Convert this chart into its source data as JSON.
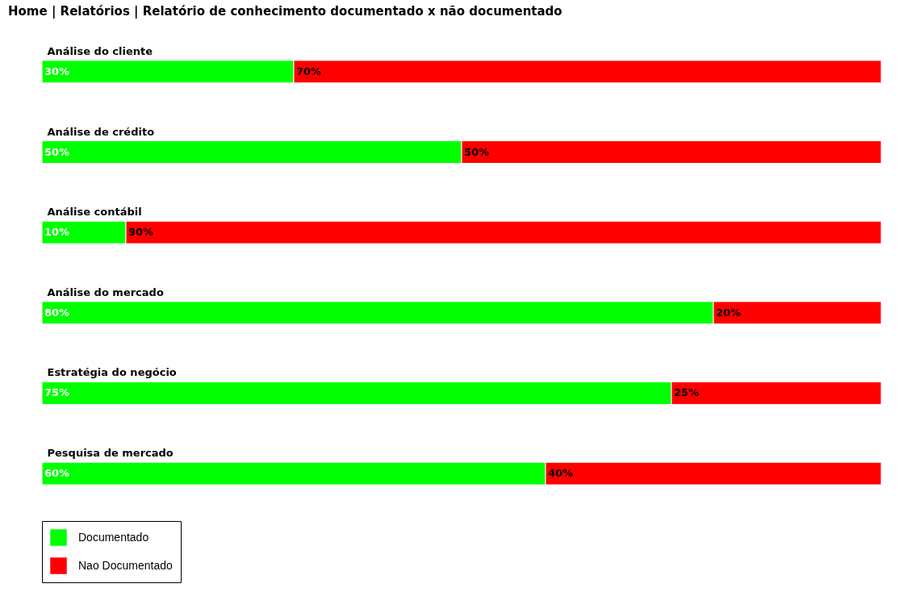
{
  "chart_data": {
    "type": "bar",
    "orientation": "horizontal",
    "stacked": true,
    "title": "Home | Relatórios | Relatório de conhecimento documentado x não documentado",
    "categories": [
      "Análise do cliente",
      "Análise de crédito",
      "Análise contábil",
      "Análise do mercado",
      "Estratégia do negócio",
      "Pesquisa de mercado"
    ],
    "series": [
      {
        "name": "Documentado",
        "color": "#00ff00",
        "values": [
          30,
          50,
          10,
          80,
          75,
          60
        ],
        "value_labels": [
          "30%",
          "50%",
          "10%",
          "80%",
          "75%",
          "60%"
        ]
      },
      {
        "name": "Nao Documentado",
        "color": "#ff0000",
        "values": [
          70,
          50,
          90,
          20,
          25,
          40
        ],
        "value_labels": [
          "70%",
          "50%",
          "90%",
          "20%",
          "25%",
          "40%"
        ]
      }
    ],
    "xlim": [
      0,
      100
    ],
    "tick_labels": "y",
    "legend": "bottom left"
  }
}
